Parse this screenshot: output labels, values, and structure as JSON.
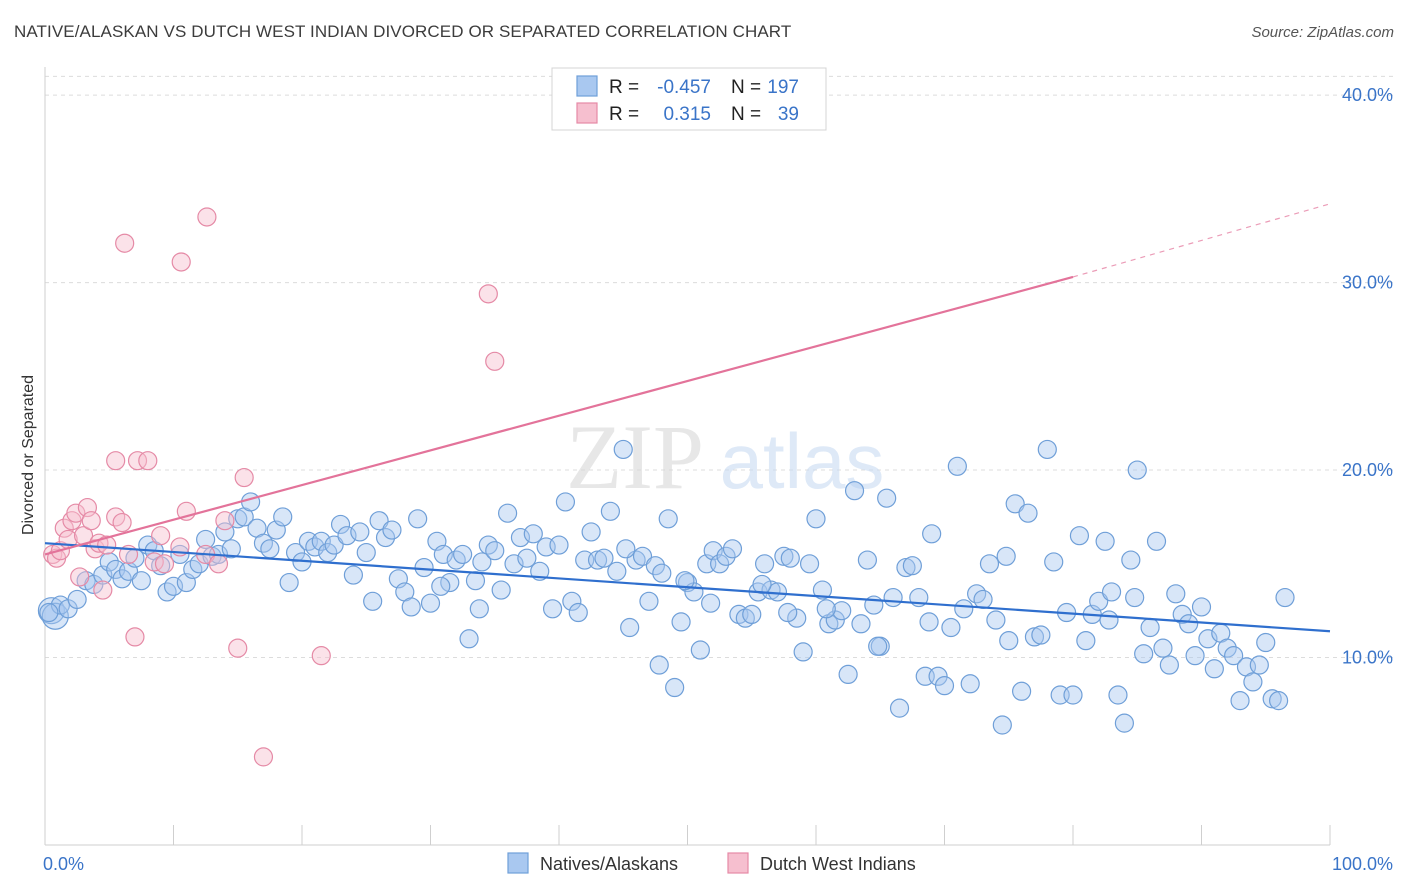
{
  "header": {
    "title": "NATIVE/ALASKAN VS DUTCH WEST INDIAN DIVORCED OR SEPARATED CORRELATION CHART",
    "source": "Source: ZipAtlas.com"
  },
  "watermark": {
    "part1": "ZIP",
    "part2": "atlas"
  },
  "legend": {
    "rows": [
      {
        "r_label": "R =",
        "r_value": "-0.457",
        "n_label": "N =",
        "n_value": "197",
        "color": "#a9c8f0",
        "stroke": "#6f9fd8"
      },
      {
        "r_label": "R =",
        "r_value": "0.315",
        "n_label": "N =",
        "n_value": "39",
        "color": "#f6bfcf",
        "stroke": "#e58aa6"
      }
    ]
  },
  "chart_data": {
    "type": "scatter",
    "title": "NATIVE/ALASKAN VS DUTCH WEST INDIAN DIVORCED OR SEPARATED CORRELATION CHART",
    "xlabel": "",
    "ylabel": "Divorced or Separated",
    "xlim": [
      0,
      100
    ],
    "ylim": [
      0,
      41.5
    ],
    "x_tick_labels": [
      "0.0%",
      "100.0%"
    ],
    "y_ticks": [
      10,
      20,
      30,
      40
    ],
    "y_tick_labels": [
      "10.0%",
      "20.0%",
      "30.0%",
      "40.0%"
    ],
    "grid": true,
    "series": [
      {
        "name": "Natives/Alaskans",
        "color": "#a9c8f0",
        "stroke": "#6f9fd8",
        "trend": {
          "x0": 0,
          "y0": 16.1,
          "x1": 100,
          "y1": 11.4,
          "color": "#2f6fce"
        },
        "points": [
          [
            0.5,
            12.5
          ],
          [
            0.8,
            12.2
          ],
          [
            1.2,
            12.8
          ],
          [
            1.8,
            12.6
          ],
          [
            2.5,
            13.1
          ],
          [
            3.2,
            14.1
          ],
          [
            3.8,
            13.9
          ],
          [
            4.5,
            14.4
          ],
          [
            5.0,
            15.1
          ],
          [
            5.5,
            14.7
          ],
          [
            6.0,
            14.2
          ],
          [
            6.5,
            14.6
          ],
          [
            7.0,
            15.3
          ],
          [
            7.5,
            14.1
          ],
          [
            8.0,
            16.0
          ],
          [
            8.5,
            15.7
          ],
          [
            9.0,
            14.9
          ],
          [
            9.5,
            13.5
          ],
          [
            10.0,
            13.8
          ],
          [
            10.5,
            15.5
          ],
          [
            11.0,
            14.0
          ],
          [
            11.5,
            14.7
          ],
          [
            12.0,
            15.0
          ],
          [
            12.5,
            16.3
          ],
          [
            13.0,
            15.4
          ],
          [
            13.5,
            15.5
          ],
          [
            14.0,
            16.7
          ],
          [
            14.5,
            15.8
          ],
          [
            15.0,
            17.4
          ],
          [
            15.5,
            17.5
          ],
          [
            16.0,
            18.3
          ],
          [
            16.5,
            16.9
          ],
          [
            17.0,
            16.1
          ],
          [
            17.5,
            15.8
          ],
          [
            18.0,
            16.8
          ],
          [
            18.5,
            17.5
          ],
          [
            19.0,
            14.0
          ],
          [
            19.5,
            15.6
          ],
          [
            20.0,
            15.1
          ],
          [
            20.5,
            16.2
          ],
          [
            21.0,
            15.9
          ],
          [
            21.5,
            16.2
          ],
          [
            22.0,
            15.6
          ],
          [
            22.5,
            16.0
          ],
          [
            23.0,
            17.1
          ],
          [
            23.5,
            16.5
          ],
          [
            24.0,
            14.4
          ],
          [
            24.5,
            16.7
          ],
          [
            25.0,
            15.6
          ],
          [
            25.5,
            13.0
          ],
          [
            26.0,
            17.3
          ],
          [
            26.5,
            16.4
          ],
          [
            27.0,
            16.8
          ],
          [
            27.5,
            14.2
          ],
          [
            28.0,
            13.5
          ],
          [
            28.5,
            12.7
          ],
          [
            29.0,
            17.4
          ],
          [
            29.5,
            14.8
          ],
          [
            30.0,
            12.9
          ],
          [
            30.5,
            16.2
          ],
          [
            31.0,
            15.5
          ],
          [
            31.5,
            14.0
          ],
          [
            32.0,
            15.2
          ],
          [
            32.5,
            15.5
          ],
          [
            33.0,
            11.0
          ],
          [
            33.5,
            14.1
          ],
          [
            34.0,
            15.1
          ],
          [
            34.5,
            16.0
          ],
          [
            35.0,
            15.7
          ],
          [
            35.5,
            13.6
          ],
          [
            36.0,
            17.7
          ],
          [
            36.5,
            15.0
          ],
          [
            37.0,
            16.4
          ],
          [
            37.5,
            15.3
          ],
          [
            38.0,
            16.6
          ],
          [
            38.5,
            14.6
          ],
          [
            39.0,
            15.9
          ],
          [
            39.5,
            12.6
          ],
          [
            40.0,
            16.0
          ],
          [
            40.5,
            18.3
          ],
          [
            41.0,
            13.0
          ],
          [
            41.5,
            12.4
          ],
          [
            42.0,
            15.2
          ],
          [
            42.5,
            16.7
          ],
          [
            43.0,
            15.2
          ],
          [
            43.5,
            15.3
          ],
          [
            44.0,
            17.8
          ],
          [
            44.5,
            14.6
          ],
          [
            45.0,
            21.1
          ],
          [
            45.5,
            11.6
          ],
          [
            46.0,
            15.2
          ],
          [
            46.5,
            15.4
          ],
          [
            47.0,
            13.0
          ],
          [
            47.5,
            14.9
          ],
          [
            48.0,
            14.5
          ],
          [
            48.5,
            17.4
          ],
          [
            49.0,
            8.4
          ],
          [
            49.5,
            11.9
          ],
          [
            50.0,
            14.0
          ],
          [
            50.5,
            13.5
          ],
          [
            51.0,
            10.4
          ],
          [
            51.5,
            15.0
          ],
          [
            52.0,
            15.7
          ],
          [
            52.5,
            15.0
          ],
          [
            53.0,
            15.4
          ],
          [
            53.5,
            15.8
          ],
          [
            54.0,
            12.3
          ],
          [
            54.5,
            12.1
          ],
          [
            55.0,
            12.3
          ],
          [
            55.5,
            13.5
          ],
          [
            56.0,
            15.0
          ],
          [
            56.5,
            13.6
          ],
          [
            57.0,
            13.5
          ],
          [
            57.5,
            15.4
          ],
          [
            58.0,
            15.3
          ],
          [
            58.5,
            12.1
          ],
          [
            59.0,
            10.3
          ],
          [
            59.5,
            15.0
          ],
          [
            60.0,
            17.4
          ],
          [
            60.5,
            13.6
          ],
          [
            61.0,
            11.8
          ],
          [
            61.5,
            12.0
          ],
          [
            62.0,
            12.5
          ],
          [
            62.5,
            9.1
          ],
          [
            63.0,
            18.9
          ],
          [
            63.5,
            11.8
          ],
          [
            64.0,
            15.2
          ],
          [
            64.5,
            12.8
          ],
          [
            65.0,
            10.6
          ],
          [
            65.5,
            18.5
          ],
          [
            66.0,
            13.2
          ],
          [
            66.5,
            7.3
          ],
          [
            67.0,
            14.8
          ],
          [
            67.5,
            14.9
          ],
          [
            68.0,
            13.2
          ],
          [
            68.5,
            9.0
          ],
          [
            69.0,
            16.6
          ],
          [
            69.5,
            9.0
          ],
          [
            70.0,
            8.5
          ],
          [
            70.5,
            11.6
          ],
          [
            71.0,
            20.2
          ],
          [
            71.5,
            12.6
          ],
          [
            72.0,
            8.6
          ],
          [
            72.5,
            13.4
          ],
          [
            73.0,
            13.1
          ],
          [
            73.5,
            15.0
          ],
          [
            74.0,
            12.0
          ],
          [
            74.5,
            6.4
          ],
          [
            75.0,
            10.9
          ],
          [
            75.5,
            18.2
          ],
          [
            76.0,
            8.2
          ],
          [
            76.5,
            17.7
          ],
          [
            77.0,
            11.1
          ],
          [
            77.5,
            11.2
          ],
          [
            78.0,
            21.1
          ],
          [
            78.5,
            15.1
          ],
          [
            79.0,
            8.0
          ],
          [
            79.5,
            12.4
          ],
          [
            80.0,
            8.0
          ],
          [
            80.5,
            16.5
          ],
          [
            81.0,
            10.9
          ],
          [
            81.5,
            12.3
          ],
          [
            82.0,
            13.0
          ],
          [
            82.5,
            16.2
          ],
          [
            83.0,
            13.5
          ],
          [
            83.5,
            8.0
          ],
          [
            84.0,
            6.5
          ],
          [
            84.5,
            15.2
          ],
          [
            85.0,
            20.0
          ],
          [
            85.5,
            10.2
          ],
          [
            86.0,
            11.6
          ],
          [
            86.5,
            16.2
          ],
          [
            87.0,
            10.5
          ],
          [
            87.5,
            9.6
          ],
          [
            88.0,
            13.4
          ],
          [
            88.5,
            12.3
          ],
          [
            89.0,
            11.8
          ],
          [
            89.5,
            10.1
          ],
          [
            90.0,
            12.7
          ],
          [
            90.5,
            11.0
          ],
          [
            91.0,
            9.4
          ],
          [
            91.5,
            11.3
          ],
          [
            92.0,
            10.5
          ],
          [
            92.5,
            10.1
          ],
          [
            93.0,
            7.7
          ],
          [
            93.5,
            9.5
          ],
          [
            94.0,
            8.7
          ],
          [
            94.5,
            9.6
          ],
          [
            95.0,
            10.8
          ],
          [
            95.5,
            7.8
          ],
          [
            96.0,
            7.7
          ],
          [
            96.5,
            13.2
          ],
          [
            84.8,
            13.2
          ],
          [
            64.8,
            10.6
          ],
          [
            60.8,
            12.6
          ],
          [
            45.2,
            15.8
          ],
          [
            51.8,
            12.9
          ],
          [
            30.8,
            13.8
          ],
          [
            33.8,
            12.6
          ],
          [
            47.8,
            9.6
          ],
          [
            49.8,
            14.1
          ],
          [
            55.8,
            13.9
          ],
          [
            57.8,
            12.4
          ],
          [
            0.3,
            12.4
          ],
          [
            68.8,
            11.9
          ],
          [
            74.8,
            15.4
          ],
          [
            82.8,
            12.0
          ]
        ]
      },
      {
        "name": "Dutch West Indians",
        "color": "#f6bfcf",
        "stroke": "#e58aa6",
        "trend": {
          "x0": 0,
          "y0": 15.5,
          "x1": 80,
          "y1": 30.3,
          "dash_x1": 100,
          "dash_y1": 34.2,
          "color": "#e3739a"
        },
        "points": [
          [
            0.6,
            15.5
          ],
          [
            0.9,
            15.3
          ],
          [
            1.2,
            15.7
          ],
          [
            1.5,
            16.9
          ],
          [
            1.8,
            16.3
          ],
          [
            2.1,
            17.3
          ],
          [
            2.4,
            17.7
          ],
          [
            2.7,
            14.3
          ],
          [
            3.0,
            16.5
          ],
          [
            3.3,
            18.0
          ],
          [
            3.6,
            17.3
          ],
          [
            3.9,
            15.8
          ],
          [
            4.2,
            16.1
          ],
          [
            4.5,
            13.6
          ],
          [
            4.8,
            16.0
          ],
          [
            5.5,
            17.5
          ],
          [
            6.0,
            17.2
          ],
          [
            6.5,
            15.5
          ],
          [
            7.0,
            11.1
          ],
          [
            8.5,
            15.1
          ],
          [
            9.0,
            16.5
          ],
          [
            9.3,
            15.0
          ],
          [
            10.5,
            15.9
          ],
          [
            11.0,
            17.8
          ],
          [
            12.5,
            15.5
          ],
          [
            13.5,
            15.0
          ],
          [
            14.0,
            17.3
          ],
          [
            15.0,
            10.5
          ],
          [
            15.5,
            19.6
          ],
          [
            17.0,
            4.7
          ],
          [
            21.5,
            10.1
          ],
          [
            5.5,
            20.5
          ],
          [
            7.2,
            20.5
          ],
          [
            8.0,
            20.5
          ],
          [
            6.2,
            32.1
          ],
          [
            10.6,
            31.1
          ],
          [
            12.6,
            33.5
          ],
          [
            34.5,
            29.4
          ],
          [
            35.0,
            25.8
          ]
        ]
      }
    ],
    "extra_points_note": ""
  },
  "bottom_legend": [
    {
      "label": "Natives/Alaskans",
      "color": "#a9c8f0",
      "stroke": "#6f9fd8"
    },
    {
      "label": "Dutch West Indians",
      "color": "#f6bfcf",
      "stroke": "#e58aa6"
    }
  ]
}
